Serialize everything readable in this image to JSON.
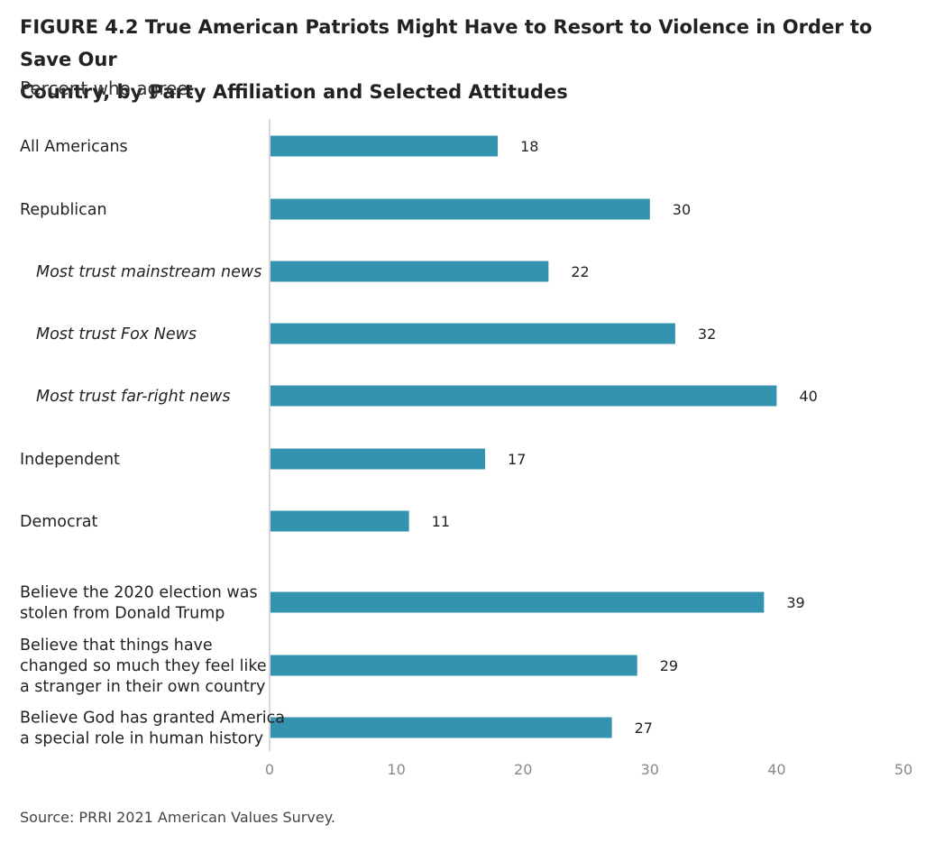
{
  "figure": {
    "title_line1": "FIGURE 4.2  True American Patriots Might Have to Resort to Violence in Order to Save Our",
    "title_line2": "Country,  by Party Affiliation and Selected Attitudes",
    "subtitle": "Percent who agree:",
    "source": "Source: PRRI 2021 American Values Survey."
  },
  "colors": {
    "bar": "#3494b0",
    "axis": "#d8d8d8",
    "tick": "#888888",
    "label": "#222222"
  },
  "chart_data": {
    "type": "bar",
    "orientation": "horizontal",
    "categories": [
      [
        "All Americans"
      ],
      [
        "Republican"
      ],
      [
        "Most trust mainstream news"
      ],
      [
        "Most trust Fox News"
      ],
      [
        "Most trust far-right news"
      ],
      [
        "Independent"
      ],
      [
        "Democrat"
      ],
      [
        "Believe the 2020 election was",
        "stolen from Donald Trump"
      ],
      [
        "Believe that things have",
        "changed so much they feel like",
        "a stranger in their own country"
      ],
      [
        "Believe God has granted America",
        "a special role in human history"
      ]
    ],
    "italic": [
      false,
      false,
      true,
      true,
      true,
      false,
      false,
      false,
      false,
      false
    ],
    "values": [
      18,
      30,
      22,
      32,
      40,
      17,
      11,
      39,
      29,
      27
    ],
    "xlim": [
      0,
      50
    ],
    "xticks": [
      0,
      10,
      20,
      30,
      40,
      50
    ],
    "grid": false,
    "legend": "none"
  }
}
